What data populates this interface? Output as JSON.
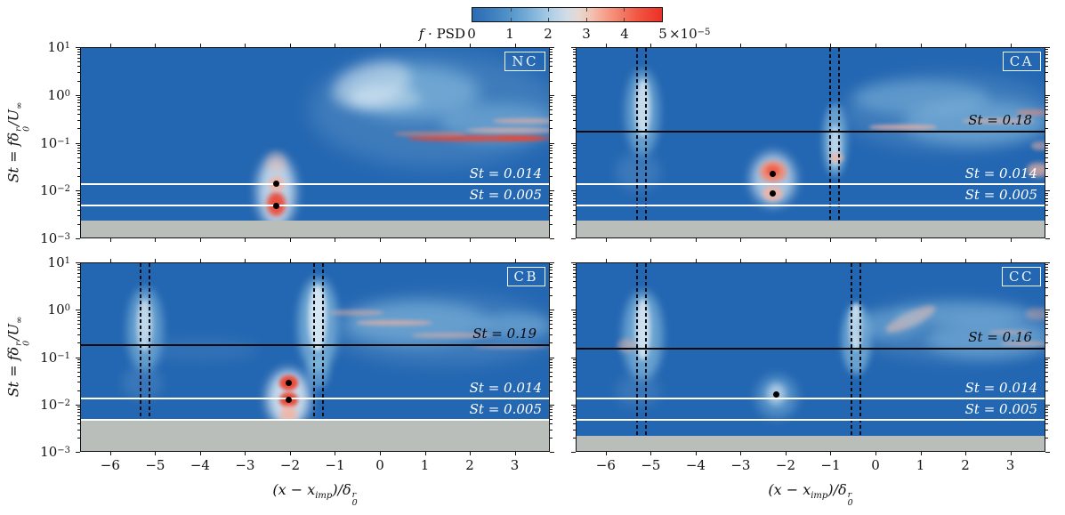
{
  "figure": {
    "colorbar": {
      "label_f": "f · ",
      "label_psd": "PSD",
      "ticks": [
        "0",
        "1",
        "2",
        "3",
        "4",
        "5"
      ],
      "multiplier_base": "×10",
      "multiplier_exp": "−5",
      "gradient": [
        "#2b6bb3 0%",
        "#3a7cbe 9%",
        "#4f90c8 18%",
        "#6da7d4 27%",
        "#93c0e0 36%",
        "#b6d2e7 43%",
        "#d2dce5 50%",
        "#e7d8d2 56%",
        "#f2c0b0 63%",
        "#f6a08c 70%",
        "#f47e67 78%",
        "#f15743 87%",
        "#ec3026 100%"
      ]
    },
    "xlabel": {
      "a": "(x − x",
      "sub": "imp",
      "b": ")/δ",
      "sup2": "r",
      "sub2": "0"
    },
    "ylabel": {
      "a": "St = fδ",
      "sup": "r",
      "sub": "0",
      "b": "/U",
      "sub2": "∞"
    },
    "x_ticks": [
      "−6",
      "−5",
      "−4",
      "−3",
      "−2",
      "−1",
      "0",
      "1",
      "2",
      "3"
    ],
    "x_tick_values": [
      -6,
      -5,
      -4,
      -3,
      -2,
      -1,
      0,
      1,
      2,
      3
    ],
    "y_tick_exponents": [
      "1",
      "0",
      "−1",
      "−2",
      "−3"
    ]
  },
  "palette": {
    "base": "#2366b1",
    "gray": "#b9beba",
    "frame": "#111111",
    "w": "#eff6fa",
    "lb": "#8fc2e1",
    "pb": "#6096c8",
    "pk": "#f4b3a2",
    "sal": "#f18a73",
    "rd": "#ee4430"
  },
  "chart_data": {
    "type": "heatmap",
    "x_axis_label": "(x − x_imp)/δ0^r",
    "y_axis_label": "St = f δ0^r / U∞",
    "colorbar_label": "f · PSD",
    "colorbar_range": [
      0,
      5e-05
    ],
    "x_range": [
      -6.67,
      3.78
    ],
    "st_range": [
      0.001,
      10
    ],
    "st_log_decades": 4,
    "panels": [
      {
        "name": "NC",
        "badge": "NC",
        "white_lines": [
          {
            "st": 0.014,
            "label": "St = 0.014"
          },
          {
            "st": 0.005,
            "label": "St = 0.005"
          }
        ],
        "black_line": null,
        "dashed_x": [],
        "markers": [
          {
            "x": -2.33,
            "st": 0.0145
          },
          {
            "x": -2.33,
            "st": 0.005
          }
        ],
        "gray_below_st": 0.0025,
        "features": [
          [
            -2.32,
            0.01,
            0.85,
            1.5,
            "w",
            0.75,
            6,
            0
          ],
          [
            -2.32,
            0.0055,
            0.42,
            0.5,
            "rd",
            0.9,
            3,
            0
          ],
          [
            -2.32,
            0.0145,
            0.36,
            0.3,
            "pk",
            0.9,
            2,
            0
          ],
          [
            -2.32,
            0.04,
            0.45,
            0.45,
            "pk",
            0.35,
            4,
            0
          ],
          [
            1.2,
            0.5,
            5.6,
            2.4,
            "pb",
            0.45,
            12,
            0
          ],
          [
            0.7,
            1.2,
            3.0,
            1.1,
            "lb",
            0.6,
            9,
            0
          ],
          [
            -0.2,
            1.7,
            1.8,
            0.9,
            "w",
            0.45,
            7,
            -15
          ],
          [
            2.6,
            0.28,
            2.6,
            0.8,
            "lb",
            0.45,
            8,
            0
          ],
          [
            2.1,
            0.13,
            3.0,
            0.13,
            "rd",
            0.8,
            2,
            0
          ],
          [
            3.2,
            0.13,
            1.2,
            0.1,
            "rd",
            0.7,
            2,
            0
          ],
          [
            2.9,
            0.19,
            2.0,
            0.1,
            "pk",
            0.7,
            2,
            0
          ],
          [
            3.2,
            0.3,
            1.4,
            0.1,
            "pk",
            0.6,
            2,
            0
          ],
          [
            1.1,
            0.16,
            1.6,
            0.08,
            "sal",
            0.55,
            2,
            0
          ],
          [
            0.1,
            0.9,
            1.6,
            0.5,
            "w",
            0.35,
            6,
            0
          ]
        ]
      },
      {
        "name": "CA",
        "badge": "CA",
        "white_lines": [
          {
            "st": 0.014,
            "label": "St = 0.014"
          },
          {
            "st": 0.005,
            "label": "St = 0.005"
          }
        ],
        "black_line": {
          "st": 0.18,
          "label": "St = 0.18"
        },
        "dashed_x": [
          [
            -5.33,
            -5.13
          ],
          [
            -1.03,
            -0.84
          ]
        ],
        "markers": [
          {
            "x": -2.3,
            "st": 0.023
          },
          {
            "x": -2.3,
            "st": 0.009
          }
        ],
        "gray_below_st": 0.0025,
        "features": [
          [
            -5.2,
            0.45,
            0.75,
            1.8,
            "lb",
            0.6,
            5,
            0
          ],
          [
            -5.2,
            0.55,
            0.33,
            1.2,
            "w",
            0.7,
            3,
            0
          ],
          [
            -5.3,
            0.025,
            1.0,
            0.8,
            "pb",
            0.4,
            7,
            0
          ],
          [
            -2.3,
            0.018,
            1.0,
            1.1,
            "w",
            0.65,
            6,
            0
          ],
          [
            -2.3,
            0.026,
            0.6,
            0.45,
            "sal",
            0.95,
            3,
            0
          ],
          [
            -2.3,
            0.027,
            0.3,
            0.22,
            "rd",
            0.6,
            2,
            0
          ],
          [
            -2.3,
            0.009,
            0.45,
            0.32,
            "pk",
            0.8,
            2,
            0
          ],
          [
            -0.92,
            0.12,
            0.55,
            1.5,
            "lb",
            0.65,
            4,
            0
          ],
          [
            -0.92,
            0.09,
            0.26,
            0.9,
            "w",
            0.6,
            3,
            0
          ],
          [
            -0.88,
            0.05,
            0.3,
            0.2,
            "pk",
            0.7,
            2,
            0
          ],
          [
            1.6,
            0.45,
            4.8,
            1.6,
            "pb",
            0.45,
            11,
            0
          ],
          [
            2.2,
            0.28,
            3.2,
            0.9,
            "lb",
            0.5,
            8,
            0
          ],
          [
            0.6,
            0.22,
            1.5,
            0.1,
            "pk",
            0.75,
            2,
            0
          ],
          [
            2.7,
            0.3,
            1.6,
            0.1,
            "pk",
            0.6,
            2,
            0
          ],
          [
            3.5,
            0.45,
            0.8,
            0.12,
            "sal",
            0.55,
            2,
            0
          ],
          [
            3.6,
            0.028,
            0.5,
            0.3,
            "pk",
            0.7,
            3,
            0
          ],
          [
            3.65,
            0.09,
            0.4,
            0.2,
            "pk",
            0.5,
            2,
            0
          ],
          [
            1.0,
            0.9,
            3.0,
            0.7,
            "lb",
            0.4,
            7,
            0
          ]
        ]
      },
      {
        "name": "CB",
        "badge": "CB",
        "white_lines": [
          {
            "st": 0.014,
            "label": "St = 0.014"
          },
          {
            "st": 0.005,
            "label": "St = 0.005"
          }
        ],
        "black_line": {
          "st": 0.19,
          "label": "St = 0.19"
        },
        "dashed_x": [
          [
            -5.35,
            -5.15
          ],
          [
            -1.49,
            -1.29
          ]
        ],
        "markers": [
          {
            "x": -2.05,
            "st": 0.03
          },
          {
            "x": -2.05,
            "st": 0.013
          }
        ],
        "gray_below_st": 0.0048,
        "features": [
          [
            -5.25,
            0.4,
            0.8,
            1.8,
            "lb",
            0.6,
            5,
            0
          ],
          [
            -5.25,
            0.5,
            0.33,
            1.1,
            "w",
            0.65,
            3,
            0
          ],
          [
            -5.3,
            0.03,
            0.9,
            0.7,
            "pb",
            0.35,
            6,
            0
          ],
          [
            -1.4,
            0.5,
            0.9,
            2.0,
            "lb",
            0.7,
            5,
            0
          ],
          [
            -1.4,
            0.7,
            0.4,
            1.4,
            "w",
            0.8,
            3,
            0
          ],
          [
            -1.4,
            0.05,
            0.5,
            0.7,
            "lb",
            0.5,
            4,
            0
          ],
          [
            -2.05,
            0.014,
            0.95,
            1.2,
            "w",
            0.8,
            6,
            0
          ],
          [
            -2.05,
            0.03,
            0.42,
            0.32,
            "rd",
            0.95,
            2,
            0
          ],
          [
            -2.05,
            0.013,
            0.42,
            0.32,
            "rd",
            0.95,
            2,
            0
          ],
          [
            -2.05,
            0.0065,
            0.38,
            0.35,
            "pk",
            0.85,
            3,
            0
          ],
          [
            1.4,
            0.4,
            5.0,
            1.5,
            "pb",
            0.45,
            11,
            0
          ],
          [
            0.8,
            0.55,
            3.2,
            0.9,
            "lb",
            0.5,
            8,
            0
          ],
          [
            0.3,
            0.55,
            1.7,
            0.12,
            "pk",
            0.65,
            2,
            0
          ],
          [
            -0.55,
            0.9,
            1.2,
            0.12,
            "pk",
            0.45,
            2,
            0
          ],
          [
            1.6,
            0.3,
            1.8,
            0.1,
            "pk",
            0.5,
            2,
            0
          ],
          [
            2.9,
            0.17,
            1.7,
            0.08,
            "pk",
            0.45,
            2,
            0
          ],
          [
            -4.0,
            0.15,
            2.6,
            0.5,
            "pb",
            0.25,
            8,
            0
          ],
          [
            3.0,
            0.5,
            1.6,
            0.5,
            "lb",
            0.4,
            6,
            0
          ]
        ]
      },
      {
        "name": "CC",
        "badge": "CC",
        "white_lines": [
          {
            "st": 0.014,
            "label": "St = 0.014"
          },
          {
            "st": 0.005,
            "label": "St = 0.005"
          }
        ],
        "black_line": {
          "st": 0.16,
          "label": "St = 0.16"
        },
        "dashed_x": [
          [
            -5.33,
            -5.13
          ],
          [
            -0.55,
            -0.35
          ]
        ],
        "markers": [
          {
            "x": -2.22,
            "st": 0.017
          }
        ],
        "gray_below_st": 0.0023,
        "features": [
          [
            -5.2,
            0.3,
            0.9,
            1.9,
            "lb",
            0.65,
            5,
            0
          ],
          [
            -5.2,
            0.4,
            0.33,
            1.3,
            "w",
            0.75,
            3,
            0
          ],
          [
            -5.55,
            0.18,
            0.4,
            0.28,
            "pk",
            0.45,
            3,
            0
          ],
          [
            -5.3,
            0.02,
            1.0,
            0.7,
            "pb",
            0.35,
            7,
            0
          ],
          [
            -2.22,
            0.015,
            0.9,
            0.9,
            "lb",
            0.45,
            6,
            0
          ],
          [
            -2.22,
            0.017,
            0.42,
            0.45,
            "w",
            0.55,
            4,
            0
          ],
          [
            -0.45,
            0.25,
            0.65,
            1.5,
            "lb",
            0.65,
            4,
            0
          ],
          [
            -0.45,
            0.45,
            0.28,
            1.0,
            "w",
            0.75,
            2.5,
            0
          ],
          [
            1.7,
            0.4,
            4.4,
            1.3,
            "pb",
            0.45,
            10,
            0
          ],
          [
            2.5,
            0.25,
            2.8,
            0.8,
            "lb",
            0.45,
            8,
            0
          ],
          [
            0.75,
            0.65,
            1.2,
            0.3,
            "pk",
            0.7,
            3,
            -25
          ],
          [
            3.3,
            0.2,
            1.1,
            0.1,
            "pk",
            0.55,
            2,
            0
          ],
          [
            2.95,
            0.35,
            0.9,
            0.1,
            "pk",
            0.45,
            2,
            0
          ],
          [
            3.6,
            0.85,
            0.6,
            0.25,
            "pk",
            0.4,
            3,
            0
          ],
          [
            1.9,
            0.85,
            3.0,
            0.5,
            "lb",
            0.4,
            6,
            0
          ],
          [
            0.3,
            0.5,
            1.5,
            0.6,
            "lb",
            0.35,
            6,
            0
          ]
        ]
      }
    ]
  }
}
